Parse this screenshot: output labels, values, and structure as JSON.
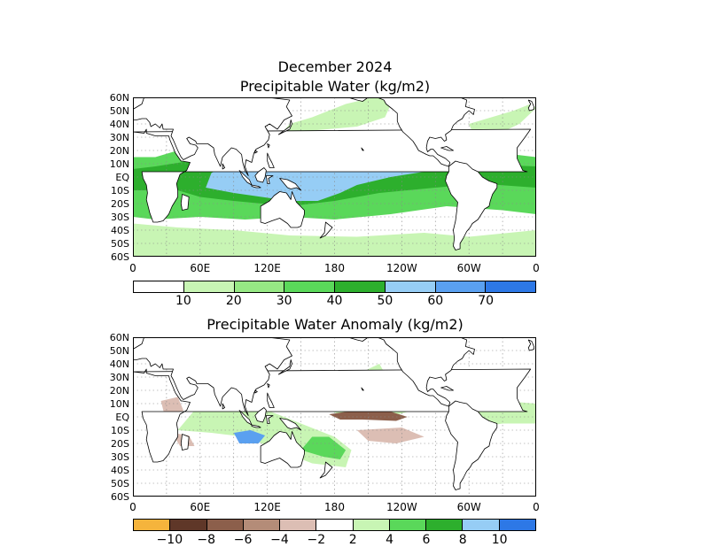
{
  "panel1": {
    "title_line1": "December 2024",
    "title_line2": "Precipitable Water (kg/m2)",
    "colorbar_colors": [
      "#ffffff",
      "#c8f5b4",
      "#96e884",
      "#5ad85a",
      "#2daf2d",
      "#96cdf5",
      "#5aa0f0",
      "#2d78e6"
    ],
    "colorbar_labels": [
      "10",
      "20",
      "30",
      "40",
      "50",
      "60",
      "70"
    ]
  },
  "panel2": {
    "title": "Precipitable Water Anomaly (kg/m2)",
    "colorbar_colors": [
      "#f5b43c",
      "#5f3728",
      "#8c5f4b",
      "#b48c78",
      "#dcbeb4",
      "#ffffff",
      "#c8f5b4",
      "#5ad85a",
      "#2daf2d",
      "#96cdf5",
      "#2d78e6"
    ],
    "colorbar_labels": [
      "−10",
      "−8",
      "−6",
      "−4",
      "−2",
      "2",
      "4",
      "6",
      "8",
      "10"
    ]
  },
  "lat_labels": [
    "60N",
    "50N",
    "40N",
    "30N",
    "20N",
    "10N",
    "EQ",
    "10S",
    "20S",
    "30S",
    "40S",
    "50S",
    "60S"
  ],
  "lon_labels": [
    "0",
    "60E",
    "120E",
    "180",
    "120W",
    "60W",
    "0"
  ],
  "map_colors": {
    "land_outline": "#000000",
    "grid": "#888888",
    "low": "#c8f5b4",
    "mid": "#5ad85a",
    "high": "#2daf2d",
    "blue": "#96cdf5",
    "blue_dark": "#5aa0f0",
    "brown": "#8c5f4b",
    "brown_light": "#dcbeb4"
  }
}
